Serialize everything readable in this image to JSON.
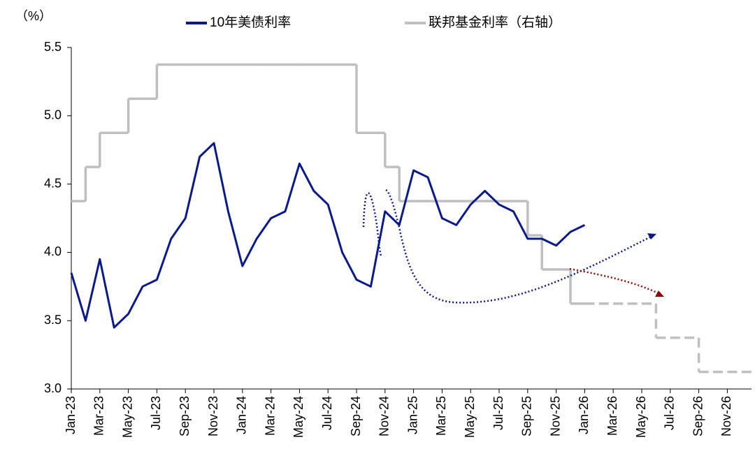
{
  "chart_data": {
    "type": "line",
    "y_unit": "（%）",
    "categories": [
      "Jan-23",
      null,
      "Mar-23",
      null,
      "May-23",
      null,
      "Jul-23",
      null,
      "Sep-23",
      null,
      "Nov-23",
      null,
      "Jan-24",
      null,
      "Mar-24",
      null,
      "May-24",
      null,
      "Jul-24",
      null,
      "Sep-24",
      null,
      "Nov-24",
      null,
      "Jan-25",
      null,
      "Mar-25",
      null,
      "May-25",
      null,
      "Jul-25",
      null,
      "Sep-25",
      null,
      "Nov-25",
      null,
      "Jan-26",
      null,
      "Mar-26",
      null,
      "May-26",
      null,
      "Jul-26",
      null,
      "Sep-26",
      null,
      "Nov-26",
      null
    ],
    "series": [
      {
        "name": "10年美债利率",
        "color": "#0a1a8c",
        "style": "solid",
        "values": [
          3.85,
          3.5,
          3.95,
          3.45,
          3.55,
          3.75,
          3.8,
          4.1,
          4.25,
          4.7,
          4.8,
          4.3,
          3.9,
          4.1,
          4.25,
          4.3,
          4.65,
          4.45,
          4.35,
          4.0,
          3.8,
          3.75,
          4.3,
          4.2,
          4.6,
          4.55,
          4.25,
          4.2,
          4.35,
          4.45,
          4.35,
          4.3,
          4.1,
          4.1,
          4.05,
          4.15,
          4.2,
          null,
          null,
          null,
          null,
          null,
          null,
          null,
          null,
          null,
          null,
          null
        ]
      },
      {
        "name": "联邦基金利率（右轴）",
        "color": "#bfbfbf",
        "style": "step",
        "dashed_from": "Jan-26",
        "values": [
          4.375,
          4.625,
          4.875,
          4.875,
          5.125,
          5.125,
          5.375,
          5.375,
          5.375,
          5.375,
          5.375,
          5.375,
          5.375,
          5.375,
          5.375,
          5.375,
          5.375,
          5.375,
          5.375,
          5.375,
          4.875,
          4.875,
          4.625,
          4.375,
          4.375,
          4.375,
          4.375,
          4.375,
          4.375,
          4.375,
          4.375,
          4.375,
          4.125,
          3.875,
          3.875,
          3.625,
          3.625,
          3.625,
          3.625,
          3.625,
          3.625,
          3.375,
          3.375,
          3.375,
          3.125,
          3.125,
          3.125,
          3.125
        ]
      }
    ],
    "ylim": [
      3.0,
      5.5
    ],
    "yticks": [
      {
        "value": 3.0,
        "label": "3.0"
      },
      3.5,
      {
        "value": 4.0,
        "label": "4.0"
      },
      4.5,
      {
        "value": 5.0,
        "label": "5.0"
      },
      5.5
    ],
    "grid": false
  }
}
